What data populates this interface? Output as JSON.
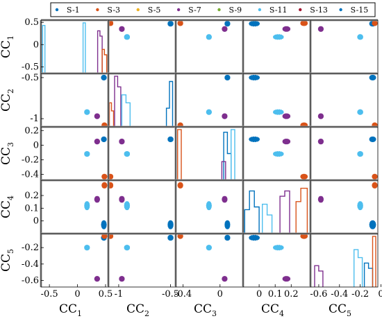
{
  "chart_data": {
    "type": "scatter",
    "title": "",
    "legend": {
      "placement": "top",
      "entries": [
        {
          "label": "S-1",
          "color": "#0072BD"
        },
        {
          "label": "S-3",
          "color": "#D95319"
        },
        {
          "label": "S-5",
          "color": "#EDB120"
        },
        {
          "label": "S-7",
          "color": "#7E2F8E"
        },
        {
          "label": "S-9",
          "color": "#77AC30"
        },
        {
          "label": "S-11",
          "color": "#4DBEEE"
        },
        {
          "label": "S-13",
          "color": "#A2142F"
        },
        {
          "label": "S-15",
          "color": "#0072BD"
        }
      ]
    },
    "variables": [
      {
        "main": "CC",
        "sub": "1",
        "range": [
          -0.65,
          0.55
        ],
        "ticks": [
          -0.5,
          0,
          0.5
        ],
        "tick_labels": [
          "-0.5",
          "0",
          "0.5"
        ],
        "bottom_tick_labels": [
          "-0.5",
          "0",
          "0.5"
        ]
      },
      {
        "main": "CC",
        "sub": "2",
        "range": [
          -1.1,
          -0.45
        ],
        "ticks": [
          -0.5,
          -1
        ],
        "tick_labels": [
          "-0.5",
          "-1"
        ],
        "bottom_tick_labels": [
          "-1",
          "-0.5"
        ]
      },
      {
        "main": "CC",
        "sub": "3",
        "range": [
          -0.48,
          0.25
        ],
        "ticks": [
          0.2,
          0,
          -0.2,
          -0.4
        ],
        "tick_labels": [
          "0.2",
          "0",
          "-0.2",
          "-0.4"
        ],
        "bottom_tick_labels": [
          "-0.4",
          "0"
        ]
      },
      {
        "main": "CC",
        "sub": "4",
        "range": [
          -0.1,
          0.32
        ],
        "ticks": [
          0.2,
          0.1,
          0
        ],
        "tick_labels": [
          "0.2",
          "0.1",
          "0"
        ],
        "bottom_tick_labels": [
          "0",
          "0.1",
          "0.2"
        ]
      },
      {
        "main": "CC",
        "sub": "5",
        "range": [
          -0.68,
          -0.03
        ],
        "ticks": [
          -0.2,
          -0.4,
          -0.6
        ],
        "tick_labels": [
          "-0.2",
          "-0.4",
          "-0.6"
        ],
        "bottom_tick_labels": [
          "-0.6",
          "-0.4",
          "-0.2",
          "0"
        ]
      }
    ],
    "grid": false,
    "clusters": [
      {
        "name": "blue",
        "color": "#0072BD",
        "means": [
          0.47,
          -0.5,
          0.08,
          -0.03,
          -0.08
        ],
        "spread": [
          0.015,
          0.02,
          0.015,
          0.03,
          0.025
        ]
      },
      {
        "name": "orange",
        "color": "#D95319",
        "means": [
          0.48,
          -1.08,
          -0.43,
          0.28,
          -0.06
        ],
        "spread": [
          0.01,
          0.01,
          0.01,
          0.018,
          0.01
        ]
      },
      {
        "name": "purple",
        "color": "#7E2F8E",
        "means": [
          0.35,
          -0.97,
          0.05,
          0.17,
          -0.58
        ],
        "spread": [
          0.01,
          0.012,
          0.02,
          0.02,
          0.01
        ]
      },
      {
        "name": "lightblue",
        "color": "#4DBEEE",
        "means": [
          0.17,
          -0.92,
          -0.12,
          0.12,
          -0.2
        ],
        "spread": [
          0.015,
          0.02,
          0.02,
          0.03,
          0.02
        ]
      }
    ],
    "histograms": [
      {
        "series": [
          {
            "color": "#4DBEEE",
            "bins": [
              [
                -0.62,
                -0.58,
                0.9
              ]
            ]
          },
          {
            "color": "#4DBEEE",
            "bins": [
              [
                0.1,
                0.14,
                0.95
              ]
            ]
          },
          {
            "color": "#7E2F8E",
            "bins": [
              [
                0.36,
                0.4,
                0.8
              ],
              [
                0.4,
                0.44,
                0.7
              ]
            ]
          },
          {
            "color": "#D95319",
            "bins": [
              [
                0.44,
                0.48,
                0.45
              ],
              [
                0.48,
                0.52,
                0.35
              ]
            ]
          }
        ]
      },
      {
        "series": [
          {
            "color": "#D95319",
            "bins": [
              [
                -1.09,
                -1.07,
                0.45
              ],
              [
                -1.07,
                -1.05,
                0.3
              ]
            ]
          },
          {
            "color": "#7E2F8E",
            "bins": [
              [
                -1.04,
                -1.01,
                0.95
              ],
              [
                -1.01,
                -0.98,
                0.75
              ]
            ]
          },
          {
            "color": "#4DBEEE",
            "bins": [
              [
                -0.97,
                -0.93,
                0.6
              ],
              [
                -0.93,
                -0.89,
                0.45
              ]
            ]
          },
          {
            "color": "#0072BD",
            "bins": [
              [
                -0.54,
                -0.51,
                0.35
              ],
              [
                -0.51,
                -0.48,
                0.85
              ]
            ]
          }
        ]
      },
      {
        "series": [
          {
            "color": "#D95319",
            "bins": [
              [
                -0.46,
                -0.42,
                0.95
              ]
            ]
          },
          {
            "color": "#0072BD",
            "bins": [
              [
                0.04,
                0.08,
                0.9
              ],
              [
                0.08,
                0.12,
                0.5
              ]
            ]
          },
          {
            "color": "#4DBEEE",
            "bins": [
              [
                0.12,
                0.16,
                0.95
              ]
            ]
          },
          {
            "color": "#7E2F8E",
            "bins": [
              [
                0.02,
                0.06,
                0.35
              ]
            ]
          }
        ]
      },
      {
        "series": [
          {
            "color": "#0072BD",
            "bins": [
              [
                -0.09,
                -0.06,
                0.45
              ],
              [
                -0.06,
                -0.03,
                0.8
              ],
              [
                -0.03,
                0.0,
                0.5
              ]
            ]
          },
          {
            "color": "#4DBEEE",
            "bins": [
              [
                0.02,
                0.05,
                0.55
              ],
              [
                0.05,
                0.08,
                0.35
              ]
            ]
          },
          {
            "color": "#7E2F8E",
            "bins": [
              [
                0.13,
                0.16,
                0.7
              ],
              [
                0.16,
                0.19,
                0.8
              ]
            ]
          },
          {
            "color": "#D95319",
            "bins": [
              [
                0.23,
                0.26,
                0.6
              ],
              [
                0.26,
                0.3,
                0.85
              ]
            ]
          }
        ]
      },
      {
        "series": [
          {
            "color": "#7E2F8E",
            "bins": [
              [
                -0.64,
                -0.6,
                0.4
              ],
              [
                -0.6,
                -0.56,
                0.3
              ]
            ]
          },
          {
            "color": "#4DBEEE",
            "bins": [
              [
                -0.26,
                -0.22,
                0.7
              ],
              [
                -0.22,
                -0.18,
                0.55
              ]
            ]
          },
          {
            "color": "#0072BD",
            "bins": [
              [
                -0.16,
                -0.12,
                0.45
              ],
              [
                -0.12,
                -0.08,
                0.35
              ]
            ]
          },
          {
            "color": "#D95319",
            "bins": [
              [
                -0.08,
                -0.05,
                0.95
              ]
            ]
          }
        ]
      }
    ]
  }
}
